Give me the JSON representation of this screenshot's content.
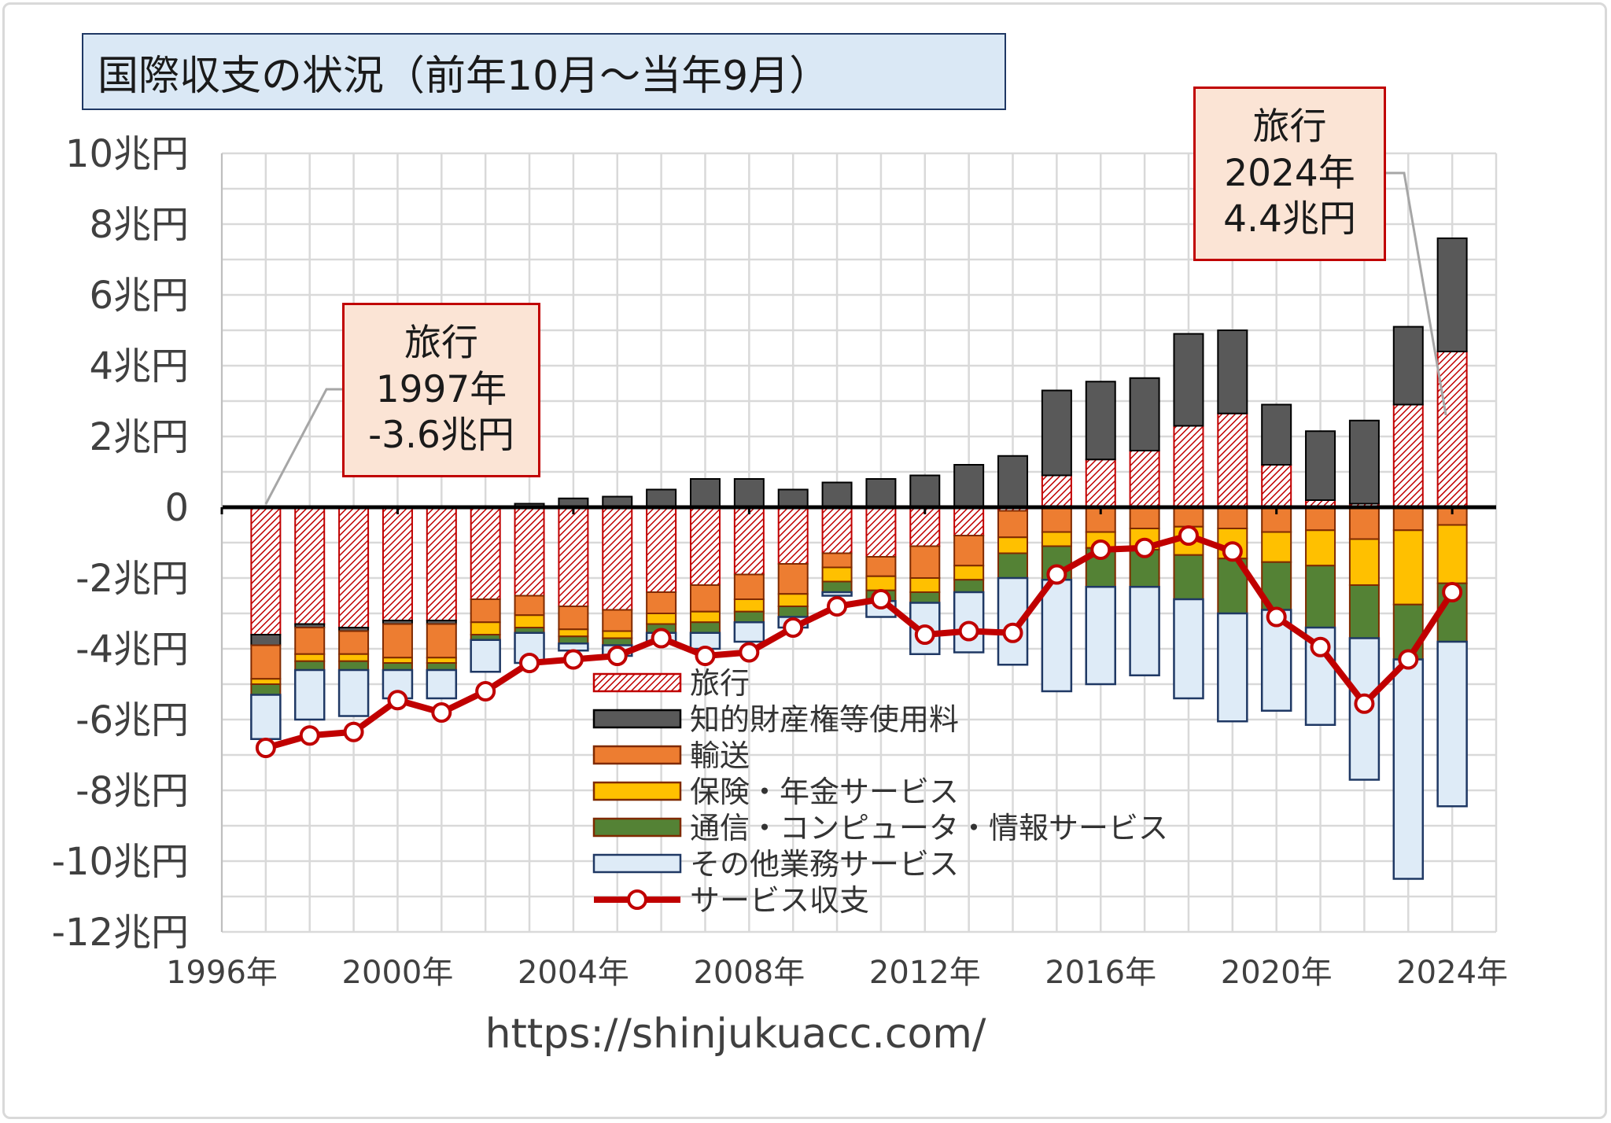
{
  "title": "国際収支の状況（前年10月～当年9月）",
  "source_url": "https://shinjukuacc.com/",
  "callouts": {
    "left": {
      "line1": "旅行",
      "line2": "1997年",
      "line3": "-3.6兆円"
    },
    "right": {
      "line1": "旅行",
      "line2": "2024年",
      "line3": "4.4兆円"
    }
  },
  "chart_data": {
    "type": "bar",
    "stacked": true,
    "title": "国際収支の状況（前年10月～当年9月）",
    "unit": "兆円",
    "ylim": [
      -12,
      10
    ],
    "yticks": [
      10,
      8,
      6,
      4,
      2,
      0,
      -2,
      -4,
      -6,
      -8,
      -10,
      -12
    ],
    "ytick_labels": [
      "10兆円",
      "8兆円",
      "6兆円",
      "4兆円",
      "2兆円",
      "0",
      "-2兆円",
      "-4兆円",
      "-6兆円",
      "-8兆円",
      "-10兆円",
      "-12兆円"
    ],
    "x": [
      1997,
      1998,
      1999,
      2000,
      2001,
      2002,
      2003,
      2004,
      2005,
      2006,
      2007,
      2008,
      2009,
      2010,
      2011,
      2012,
      2013,
      2014,
      2015,
      2016,
      2017,
      2018,
      2019,
      2020,
      2021,
      2022,
      2023,
      2024
    ],
    "xtick_labels": [
      "1996年",
      "2000年",
      "2004年",
      "2008年",
      "2012年",
      "2016年",
      "2020年",
      "2024年"
    ],
    "xtick_values": [
      1996,
      2000,
      2004,
      2008,
      2012,
      2016,
      2020,
      2024
    ],
    "legend_position": "center",
    "series": [
      {
        "name": "旅行",
        "color": "#c00000",
        "pattern": "hatched",
        "values": [
          -3.6,
          -3.3,
          -3.4,
          -3.2,
          -3.2,
          -2.6,
          -2.5,
          -2.8,
          -2.9,
          -2.4,
          -2.2,
          -1.9,
          -1.6,
          -1.3,
          -1.4,
          -1.1,
          -0.8,
          -0.1,
          0.9,
          1.35,
          1.6,
          2.3,
          2.65,
          1.2,
          0.2,
          0.1,
          2.9,
          4.4
        ]
      },
      {
        "name": "知的財産権等使用料",
        "color": "#595959",
        "values": [
          -0.3,
          -0.1,
          -0.1,
          -0.1,
          -0.1,
          0.0,
          0.1,
          0.25,
          0.3,
          0.5,
          0.8,
          0.8,
          0.5,
          0.7,
          0.8,
          0.9,
          1.2,
          1.45,
          2.4,
          2.2,
          2.05,
          2.6,
          2.35,
          1.7,
          1.95,
          2.35,
          2.2,
          3.2
        ]
      },
      {
        "name": "輸送",
        "color": "#ed7d31",
        "values": [
          -0.95,
          -0.75,
          -0.65,
          -0.95,
          -0.95,
          -0.65,
          -0.55,
          -0.65,
          -0.6,
          -0.6,
          -0.75,
          -0.7,
          -0.85,
          -0.4,
          -0.55,
          -0.9,
          -0.85,
          -0.75,
          -0.7,
          -0.7,
          -0.6,
          -0.55,
          -0.6,
          -0.7,
          -0.65,
          -0.9,
          -0.65,
          -0.5
        ]
      },
      {
        "name": "保険・年金サービス",
        "color": "#ffc000",
        "values": [
          -0.15,
          -0.2,
          -0.2,
          -0.15,
          -0.15,
          -0.35,
          -0.35,
          -0.2,
          -0.2,
          -0.3,
          -0.3,
          -0.35,
          -0.35,
          -0.4,
          -0.4,
          -0.4,
          -0.4,
          -0.45,
          -0.4,
          -0.45,
          -0.6,
          -0.8,
          -0.85,
          -0.85,
          -1.0,
          -1.3,
          -2.1,
          -1.65
        ]
      },
      {
        "name": "通信・コンピュータ・情報サービス",
        "color": "#548235",
        "values": [
          -0.3,
          -0.25,
          -0.25,
          -0.2,
          -0.2,
          -0.15,
          -0.15,
          -0.2,
          -0.2,
          -0.25,
          -0.3,
          -0.3,
          -0.3,
          -0.3,
          -0.3,
          -0.3,
          -0.35,
          -0.7,
          -0.95,
          -1.1,
          -1.05,
          -1.25,
          -1.55,
          -1.35,
          -1.75,
          -1.5,
          -1.55,
          -1.65
        ]
      },
      {
        "name": "その他業務サービス",
        "color": "#deebf7",
        "border": "#1f3864",
        "values": [
          -1.25,
          -1.4,
          -1.3,
          -0.8,
          -0.8,
          -0.9,
          -0.85,
          -0.2,
          -0.3,
          -0.25,
          -0.45,
          -0.55,
          -0.3,
          -0.1,
          -0.45,
          -1.45,
          -1.7,
          -2.45,
          -3.15,
          -2.75,
          -2.5,
          -2.8,
          -3.05,
          -2.85,
          -2.75,
          -4.0,
          -6.2,
          -4.65
        ]
      },
      {
        "name": "サービス収支",
        "color": "#c00000",
        "type": "line",
        "values": [
          -6.8,
          -6.45,
          -6.35,
          -5.45,
          -5.8,
          -5.2,
          -4.4,
          -4.3,
          -4.2,
          -3.7,
          -4.2,
          -4.1,
          -3.4,
          -2.8,
          -2.6,
          -3.6,
          -3.5,
          -3.55,
          -1.9,
          -1.2,
          -1.15,
          -0.8,
          -1.25,
          -3.1,
          -3.95,
          -5.55,
          -4.3,
          -2.4
        ]
      }
    ]
  }
}
